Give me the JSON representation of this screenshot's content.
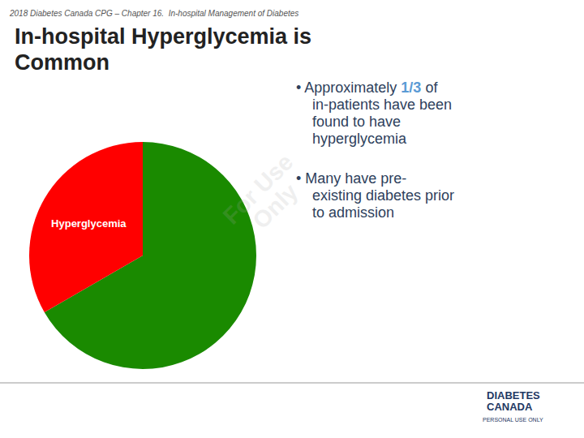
{
  "chart_data": {
    "type": "pie",
    "subtitle": "2018 Diabetes Canada CPG – Chapter 16.  In-hospital Management of Diabetes",
    "title": [
      "In-hospital Hyperglycemia is",
      "Common"
    ],
    "categories": [
      null,
      "Hyperglycemia"
    ],
    "values": [
      0.6667,
      0.3333
    ],
    "colors": [
      "#1a8a00",
      "#ff0000"
    ],
    "annotations": [
      [
        [
          "• Approximately ",
          {
            "text": "1/3",
            "color": "#5b9bd5"
          },
          " of"
        ],
        [
          "in-patients have been"
        ],
        [
          "found to have"
        ],
        [
          "hyperglycemia"
        ]
      ],
      [
        [
          "• Many have pre-"
        ],
        [
          "existing diabetes prior"
        ],
        [
          "to admission"
        ]
      ],
      [
        [
          "For Use"
        ],
        [
          "Only"
        ]
      ],
      [
        [
          "DIABETES"
        ],
        [
          "CANADA"
        ],
        [
          "PERSONAL USE ONLY"
        ]
      ]
    ]
  }
}
